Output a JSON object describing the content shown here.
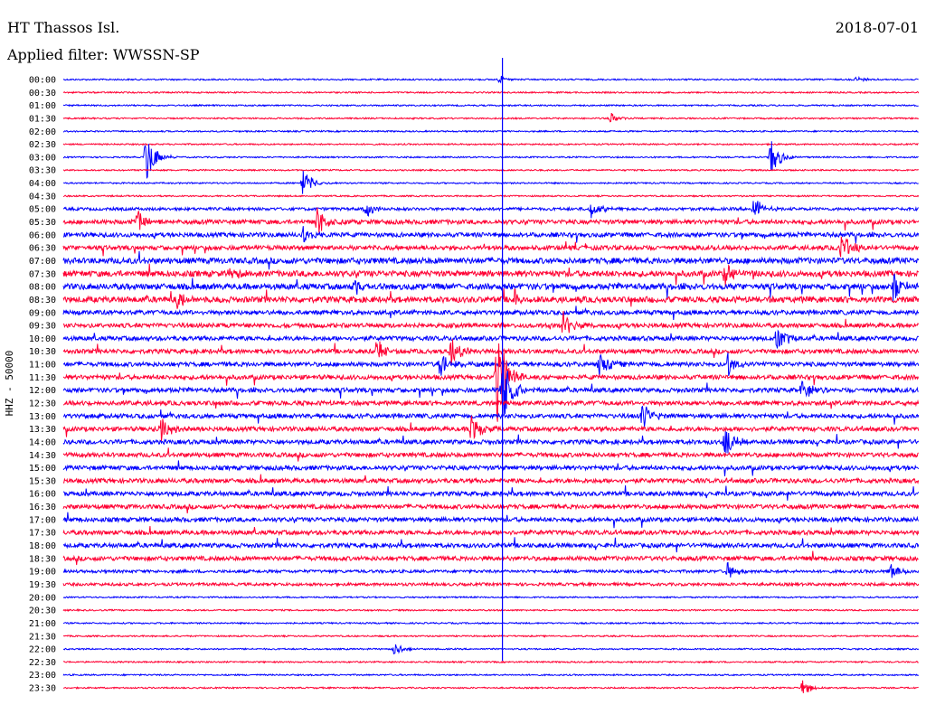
{
  "station": "HT Thassos Isl.",
  "date": "2018-07-01",
  "filter_label": "Applied filter: WWSSN-SP",
  "channel_label": "HHZ - 50000",
  "colors": {
    "blue": "#0000ff",
    "red": "#ff0033",
    "event_line": "#0000ff"
  },
  "chart_data": {
    "type": "line",
    "title": "HT Thassos Isl.",
    "subtitle": "Applied filter: WWSSN-SP",
    "date": "2018-07-01",
    "ylabel": "HHZ - 50000",
    "xlabel": "",
    "y_ticks": [
      "00:00",
      "00:30",
      "01:00",
      "01:30",
      "02:00",
      "02:30",
      "03:00",
      "03:30",
      "04:00",
      "04:30",
      "05:00",
      "05:30",
      "06:00",
      "06:30",
      "07:00",
      "07:30",
      "08:00",
      "08:30",
      "09:00",
      "09:30",
      "10:00",
      "10:30",
      "11:00",
      "11:30",
      "12:00",
      "12:30",
      "13:00",
      "13:30",
      "14:00",
      "14:30",
      "15:00",
      "15:30",
      "16:00",
      "16:30",
      "17:00",
      "17:30",
      "18:00",
      "18:30",
      "19:00",
      "19:30",
      "20:00",
      "20:30",
      "21:00",
      "21:30",
      "22:00",
      "22:30",
      "23:00",
      "23:30"
    ],
    "trace_minutes": 30,
    "alternating_colors": [
      "blue",
      "red"
    ],
    "noise_levels": [
      1,
      1,
      1,
      1,
      1,
      1,
      1,
      1,
      1,
      1,
      2,
      3,
      3,
      3,
      4,
      4,
      4,
      4,
      3,
      3,
      3,
      3,
      3,
      3,
      3,
      3,
      3,
      3,
      3,
      3,
      3,
      3,
      3,
      3,
      3,
      3,
      3,
      3,
      2,
      2,
      1,
      1,
      1,
      1,
      1,
      1,
      1,
      1
    ],
    "events": [
      {
        "trace": 0,
        "minute": 15.3,
        "amp": 4
      },
      {
        "trace": 0,
        "minute": 27.8,
        "amp": 4
      },
      {
        "trace": 3,
        "minute": 19.2,
        "amp": 6
      },
      {
        "trace": 6,
        "minute": 2.9,
        "amp": 30
      },
      {
        "trace": 6,
        "minute": 24.8,
        "amp": 22
      },
      {
        "trace": 8,
        "minute": 8.4,
        "amp": 16
      },
      {
        "trace": 10,
        "minute": 10.6,
        "amp": 10
      },
      {
        "trace": 10,
        "minute": 18.5,
        "amp": 10
      },
      {
        "trace": 10,
        "minute": 24.2,
        "amp": 14
      },
      {
        "trace": 11,
        "minute": 2.6,
        "amp": 12
      },
      {
        "trace": 11,
        "minute": 8.9,
        "amp": 18
      },
      {
        "trace": 12,
        "minute": 8.4,
        "amp": 10
      },
      {
        "trace": 13,
        "minute": 27.3,
        "amp": 16
      },
      {
        "trace": 15,
        "minute": 5.8,
        "amp": 8
      },
      {
        "trace": 15,
        "minute": 23.2,
        "amp": 16
      },
      {
        "trace": 16,
        "minute": 10.2,
        "amp": 10
      },
      {
        "trace": 16,
        "minute": 29.1,
        "amp": 18
      },
      {
        "trace": 17,
        "minute": 4.0,
        "amp": 9
      },
      {
        "trace": 17,
        "minute": 15.8,
        "amp": 12
      },
      {
        "trace": 19,
        "minute": 17.5,
        "amp": 18
      },
      {
        "trace": 20,
        "minute": 25.0,
        "amp": 20
      },
      {
        "trace": 21,
        "minute": 11.0,
        "amp": 14
      },
      {
        "trace": 21,
        "minute": 13.6,
        "amp": 16
      },
      {
        "trace": 22,
        "minute": 13.2,
        "amp": 16
      },
      {
        "trace": 22,
        "minute": 18.8,
        "amp": 14
      },
      {
        "trace": 22,
        "minute": 23.3,
        "amp": 14
      },
      {
        "trace": 23,
        "minute": 15.2,
        "amp": 60
      },
      {
        "trace": 24,
        "minute": 15.4,
        "amp": 40
      },
      {
        "trace": 24,
        "minute": 25.9,
        "amp": 12
      },
      {
        "trace": 26,
        "minute": 20.3,
        "amp": 16
      },
      {
        "trace": 27,
        "minute": 3.4,
        "amp": 16
      },
      {
        "trace": 27,
        "minute": 14.3,
        "amp": 18
      },
      {
        "trace": 28,
        "minute": 23.2,
        "amp": 18
      },
      {
        "trace": 38,
        "minute": 23.3,
        "amp": 10
      },
      {
        "trace": 38,
        "minute": 29.0,
        "amp": 10
      },
      {
        "trace": 44,
        "minute": 11.6,
        "amp": 8
      },
      {
        "trace": 47,
        "minute": 25.9,
        "amp": 10
      }
    ],
    "marker_minute": 15.4,
    "marker_range": [
      "00:00",
      "22:00"
    ]
  }
}
